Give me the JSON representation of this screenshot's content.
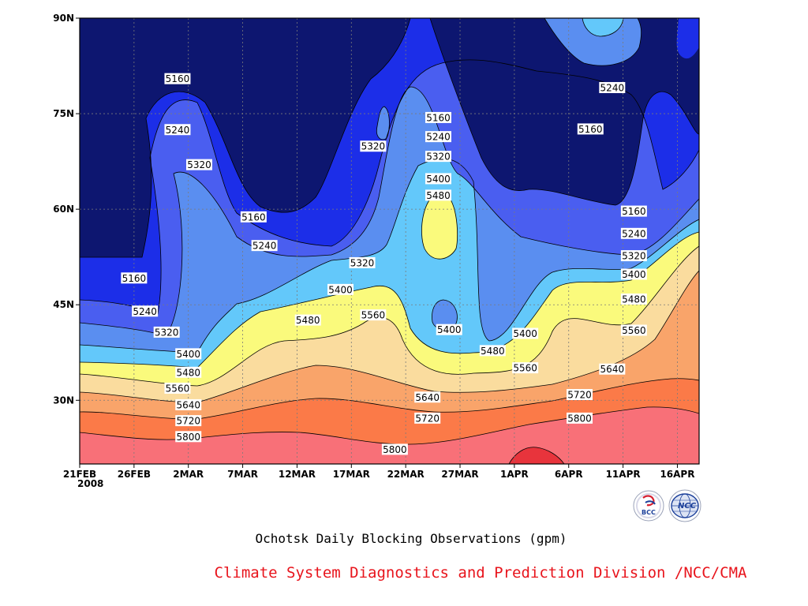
{
  "chart_data": {
    "type": "heatmap",
    "title": "Ochotsk Daily Blocking Observations (gpm)",
    "credit": "Climate System Diagnostics and Prediction Division /NCC/CMA",
    "y_axis": {
      "ticks": [
        "30N",
        "45N",
        "60N",
        "75N",
        "90N"
      ],
      "tick_values": [
        30,
        45,
        60,
        75,
        90
      ],
      "range": [
        20,
        90
      ]
    },
    "x_axis": {
      "ticks": [
        "21FEB",
        "26FEB",
        "2MAR",
        "7MAR",
        "12MAR",
        "17MAR",
        "22MAR",
        "27MAR",
        "1APR",
        "6APR",
        "11APR",
        "16APR"
      ],
      "year_label": "2008",
      "range": [
        "2008-02-21",
        "2008-04-18"
      ]
    },
    "grid": "dotted",
    "contour_levels": [
      5160,
      5240,
      5320,
      5400,
      5480,
      5560,
      5640,
      5720,
      5800
    ],
    "level_colors": [
      "#0d1670",
      "#1c2ee8",
      "#4a5ef0",
      "#5a8ef0",
      "#63c8fa",
      "#fafa7c",
      "#fadc9e",
      "#f9a46a",
      "#fb7a48",
      "#f87078",
      "#e8343c"
    ],
    "contour_labels": [
      {
        "text": "5160",
        "date": "2008-03-01",
        "lat": 80.5
      },
      {
        "text": "5240",
        "date": "2008-03-01",
        "lat": 72.5
      },
      {
        "text": "5320",
        "date": "2008-03-03",
        "lat": 67
      },
      {
        "text": "5160",
        "date": "2008-03-08",
        "lat": 58.8
      },
      {
        "text": "5240",
        "date": "2008-03-09",
        "lat": 54.3
      },
      {
        "text": "5320",
        "date": "2008-03-19",
        "lat": 69.9
      },
      {
        "text": "5160",
        "date": "2008-03-25",
        "lat": 74.4
      },
      {
        "text": "5240",
        "date": "2008-03-25",
        "lat": 71.4
      },
      {
        "text": "5320",
        "date": "2008-03-25",
        "lat": 68.3
      },
      {
        "text": "5400",
        "date": "2008-03-25",
        "lat": 64.8
      },
      {
        "text": "5480",
        "date": "2008-03-25",
        "lat": 62.2
      },
      {
        "text": "5320",
        "date": "2008-03-18",
        "lat": 51.6
      },
      {
        "text": "5400",
        "date": "2008-03-16",
        "lat": 47.4
      },
      {
        "text": "5480",
        "date": "2008-03-13",
        "lat": 42.6
      },
      {
        "text": "5560",
        "date": "2008-03-19",
        "lat": 43.4
      },
      {
        "text": "5160",
        "date": "2008-02-26",
        "lat": 49.2
      },
      {
        "text": "5240",
        "date": "2008-02-27",
        "lat": 44
      },
      {
        "text": "5320",
        "date": "2008-02-29",
        "lat": 40.7
      },
      {
        "text": "5400",
        "date": "2008-03-02",
        "lat": 37.3
      },
      {
        "text": "5480",
        "date": "2008-03-02",
        "lat": 34.4
      },
      {
        "text": "5560",
        "date": "2008-03-01",
        "lat": 31.9
      },
      {
        "text": "5640",
        "date": "2008-03-02",
        "lat": 29.3
      },
      {
        "text": "5720",
        "date": "2008-03-02",
        "lat": 26.8
      },
      {
        "text": "5800",
        "date": "2008-03-02",
        "lat": 24.3
      },
      {
        "text": "5400",
        "date": "2008-03-26",
        "lat": 41.1
      },
      {
        "text": "5480",
        "date": "2008-03-30",
        "lat": 37.8
      },
      {
        "text": "5400",
        "date": "2008-04-02",
        "lat": 40.5
      },
      {
        "text": "5560",
        "date": "2008-04-02",
        "lat": 35.1
      },
      {
        "text": "5640",
        "date": "2008-03-24",
        "lat": 30.5
      },
      {
        "text": "5720",
        "date": "2008-03-24",
        "lat": 27.2
      },
      {
        "text": "5800",
        "date": "2008-03-21",
        "lat": 22.3
      },
      {
        "text": "5240",
        "date": "2008-04-10",
        "lat": 79.1
      },
      {
        "text": "5160",
        "date": "2008-04-08",
        "lat": 72.6
      },
      {
        "text": "5160",
        "date": "2008-04-12",
        "lat": 59.7
      },
      {
        "text": "5240",
        "date": "2008-04-12",
        "lat": 56.2
      },
      {
        "text": "5320",
        "date": "2008-04-12",
        "lat": 52.7
      },
      {
        "text": "5400",
        "date": "2008-04-12",
        "lat": 49.8
      },
      {
        "text": "5480",
        "date": "2008-04-12",
        "lat": 45.9
      },
      {
        "text": "5560",
        "date": "2008-04-12",
        "lat": 41
      },
      {
        "text": "5640",
        "date": "2008-04-10",
        "lat": 34.9
      },
      {
        "text": "5720",
        "date": "2008-04-07",
        "lat": 30.9
      },
      {
        "text": "5800",
        "date": "2008-04-07",
        "lat": 27.2
      }
    ]
  },
  "logos": {
    "left": {
      "name": "bcc-logo",
      "text": "BCC"
    },
    "right": {
      "name": "ncc-logo",
      "text": "NCC"
    }
  }
}
